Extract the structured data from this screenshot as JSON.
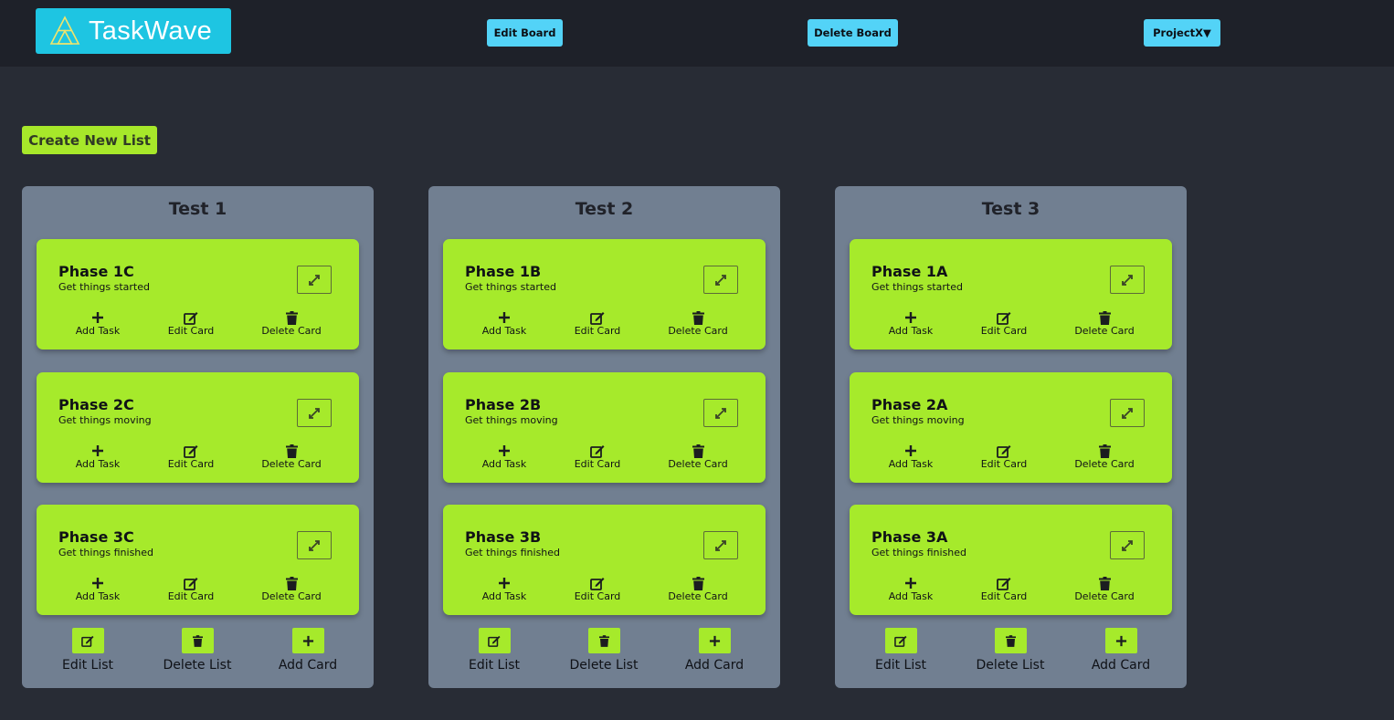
{
  "header": {
    "logo_text": "TaskWave",
    "edit_board_label": "Edit Board",
    "delete_board_label": "Delete Board",
    "project_selector_label": "ProjectX▼"
  },
  "create_list_label": "Create New List",
  "lists": [
    {
      "title": "Test 1",
      "cards": [
        {
          "title": "Phase 1C",
          "subtitle": "Get things started"
        },
        {
          "title": "Phase 2C",
          "subtitle": "Get things moving"
        },
        {
          "title": "Phase 3C",
          "subtitle": "Get things finished"
        }
      ]
    },
    {
      "title": "Test 2",
      "cards": [
        {
          "title": "Phase 1B",
          "subtitle": "Get things started"
        },
        {
          "title": "Phase 2B",
          "subtitle": "Get things moving"
        },
        {
          "title": "Phase 3B",
          "subtitle": "Get things finished"
        }
      ]
    },
    {
      "title": "Test 3",
      "cards": [
        {
          "title": "Phase 1A",
          "subtitle": "Get things started"
        },
        {
          "title": "Phase 2A",
          "subtitle": "Get things moving"
        },
        {
          "title": "Phase 3A",
          "subtitle": "Get things finished"
        }
      ]
    }
  ],
  "card_actions": {
    "add_task": "Add Task",
    "edit_card": "Edit Card",
    "delete_card": "Delete Card"
  },
  "list_actions": {
    "edit_list": "Edit List",
    "delete_list": "Delete List",
    "add_card": "Add Card"
  },
  "icons": {
    "expand": "expand-icon",
    "add": "plus-icon",
    "edit": "edit-icon",
    "delete": "trash-icon",
    "logo": "triangle-logo-icon"
  },
  "colors": {
    "background": "#282c35",
    "header": "#1e2129",
    "accent_blue": "#53d3f7",
    "logo_bg": "#1ec5e2",
    "accent_green": "#a6ea2b",
    "list_bg": "#717f91"
  }
}
